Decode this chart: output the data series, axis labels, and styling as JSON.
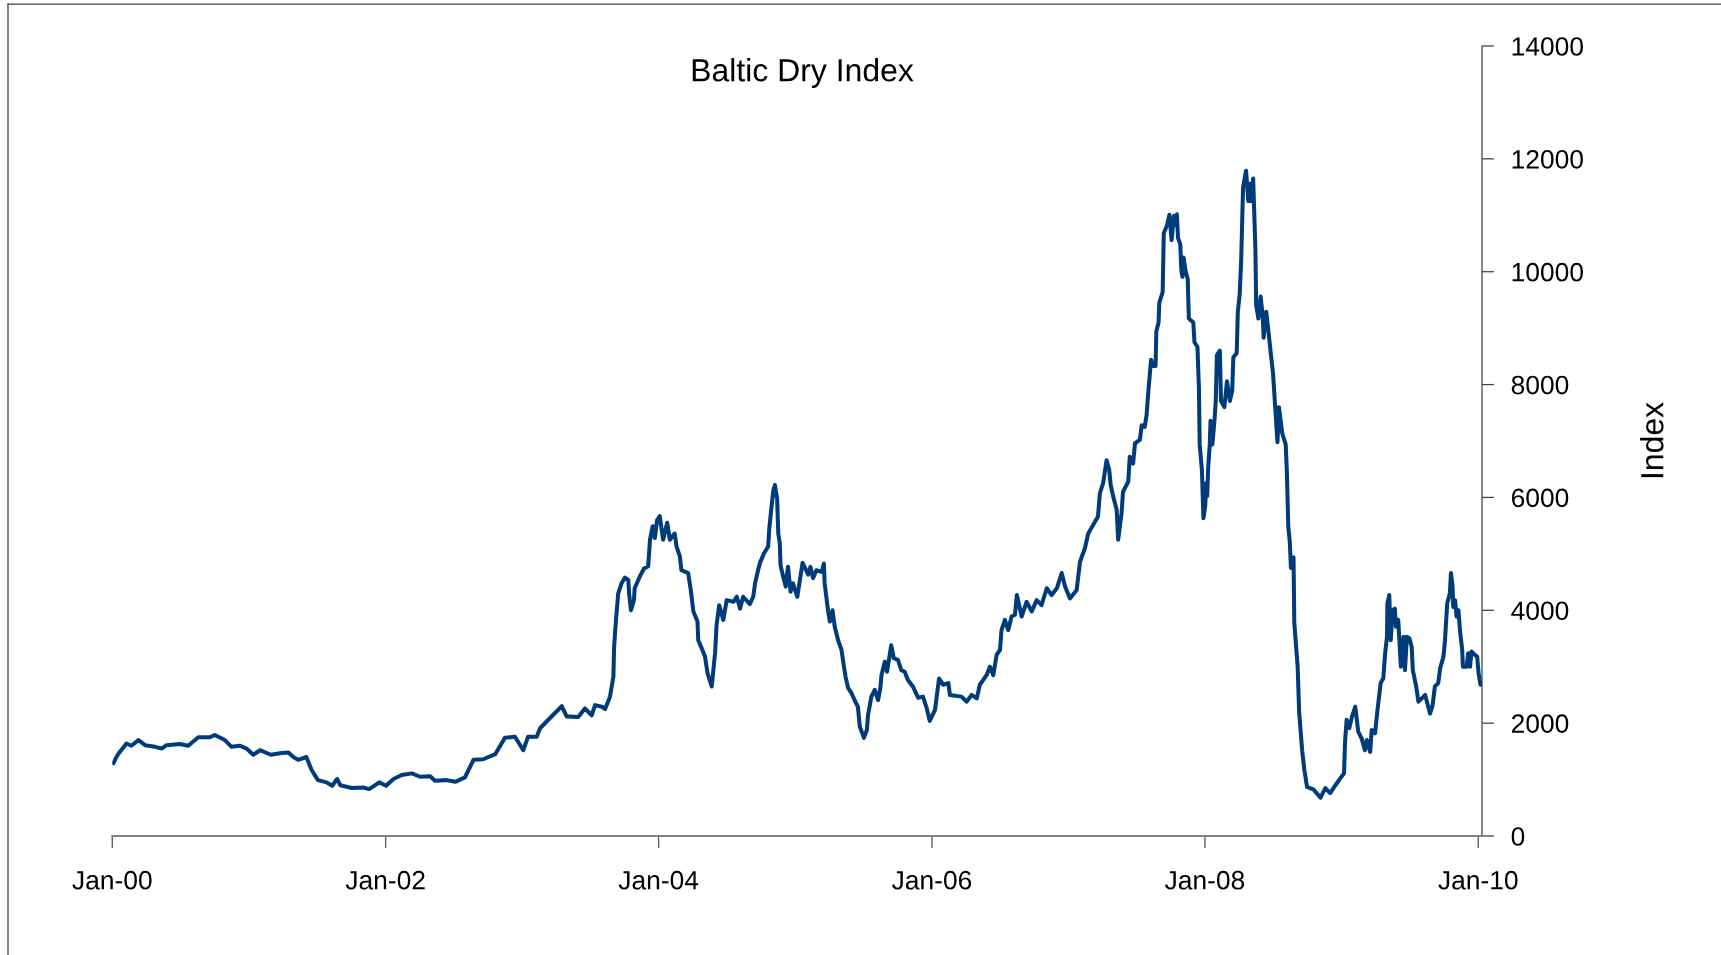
{
  "chart_data": {
    "type": "line",
    "title": "Baltic Dry Index",
    "ylabel": "Index",
    "x": [
      "2000-01-04",
      "2000-01-12",
      "2000-01-21",
      "2000-02-08",
      "2000-02-21",
      "2000-03-11",
      "2000-03-29",
      "2000-04-24",
      "2000-05-12",
      "2000-05-25",
      "2000-06-30",
      "2000-07-22",
      "2000-08-18",
      "2000-09-18",
      "2000-10-01",
      "2000-10-28",
      "2000-11-15",
      "2000-12-07",
      "2000-12-25",
      "2001-01-12",
      "2001-01-30",
      "2001-02-28",
      "2001-03-29",
      "2001-04-16",
      "2001-04-29",
      "2001-05-12",
      "2001-06-03",
      "2001-06-17",
      "2001-07-04",
      "2001-07-27",
      "2001-08-11",
      "2001-08-24",
      "2001-09-02",
      "2001-10-02",
      "2001-11-02",
      "2001-11-18",
      "2001-12-15",
      "2002-01-02",
      "2002-01-22",
      "2002-02-13",
      "2002-03-12",
      "2002-04-03",
      "2002-04-30",
      "2002-05-13",
      "2002-06-13",
      "2002-07-06",
      "2002-08-01",
      "2002-08-24",
      "2002-09-19",
      "2002-10-21",
      "2002-11-16",
      "2002-12-13",
      "2003-01-04",
      "2003-01-17",
      "2003-02-09",
      "2003-02-18",
      "2003-03-12",
      "2003-04-17",
      "2003-04-30",
      "2003-05-31",
      "2003-06-18",
      "2003-07-06",
      "2003-07-15",
      "2003-08-02",
      "2003-08-11",
      "2003-08-24",
      "2003-09-02",
      "2003-09-04",
      "2003-09-09",
      "2003-09-15",
      "2003-09-24",
      "2003-10-03",
      "2003-10-12",
      "2003-10-14",
      "2003-10-19",
      "2003-10-27",
      "2003-10-29",
      "2003-11-12",
      "2003-11-23",
      "2003-12-04",
      "2003-12-09",
      "2003-12-16",
      "2003-12-22",
      "2003-12-28",
      "2004-01-04",
      "2004-01-13",
      "2004-01-24",
      "2004-01-31",
      "2004-02-13",
      "2004-02-18",
      "2004-02-27",
      "2004-03-02",
      "2004-03-20",
      "2004-03-27",
      "2004-04-03",
      "2004-04-14",
      "2004-04-16",
      "2004-04-25",
      "2004-05-04",
      "2004-05-11",
      "2004-05-22",
      "2004-05-31",
      "2004-06-04",
      "2004-06-11",
      "2004-06-22",
      "2004-07-01",
      "2004-07-19",
      "2004-07-28",
      "2004-08-06",
      "2004-08-14",
      "2004-09-01",
      "2004-09-10",
      "2004-09-15",
      "2004-09-23",
      "2004-09-28",
      "2004-10-09",
      "2004-10-20",
      "2004-10-23",
      "2004-10-29",
      "2004-11-03",
      "2004-11-07",
      "2004-11-13",
      "2004-11-16",
      "2004-11-20",
      "2004-11-22",
      "2004-11-29",
      "2004-12-06",
      "2004-12-12",
      "2004-12-19",
      "2004-12-25",
      "2005-01-06",
      "2005-01-15",
      "2005-01-20",
      "2005-02-04",
      "2005-02-10",
      "2005-02-17",
      "2005-02-26",
      "2005-03-12",
      "2005-03-18",
      "2005-03-20",
      "2005-03-29",
      "2005-04-03",
      "2005-04-10",
      "2005-04-16",
      "2005-04-25",
      "2005-05-04",
      "2005-05-10",
      "2005-05-15",
      "2005-05-22",
      "2005-05-31",
      "2005-06-08",
      "2005-06-17",
      "2005-06-22",
      "2005-07-03",
      "2005-07-11",
      "2005-07-14",
      "2005-07-23",
      "2005-08-01",
      "2005-08-10",
      "2005-08-16",
      "2005-08-19",
      "2005-08-28",
      "2005-09-03",
      "2005-09-14",
      "2005-09-21",
      "2005-10-02",
      "2005-10-11",
      "2005-10-20",
      "2005-10-29",
      "2005-11-11",
      "2005-11-25",
      "2005-12-08",
      "2005-12-17",
      "2005-12-26",
      "2006-01-09",
      "2006-01-20",
      "2006-01-31",
      "2006-02-14",
      "2006-02-18",
      "2006-03-21",
      "2006-04-04",
      "2006-04-17",
      "2006-05-01",
      "2006-05-09",
      "2006-05-27",
      "2006-06-05",
      "2006-06-14",
      "2006-06-23",
      "2006-07-02",
      "2006-07-06",
      "2006-07-15",
      "2006-07-24",
      "2006-08-02",
      "2006-08-11",
      "2006-08-16",
      "2006-08-29",
      "2006-09-11",
      "2006-09-25",
      "2006-10-08",
      "2006-10-21",
      "2006-11-04",
      "2006-11-17",
      "2006-12-01",
      "2006-12-14",
      "2006-12-23",
      "2007-01-05",
      "2007-01-23",
      "2007-02-01",
      "2007-02-14",
      "2007-02-23",
      "2007-03-08",
      "2007-03-21",
      "2007-03-26",
      "2007-04-04",
      "2007-04-13",
      "2007-04-20",
      "2007-04-24",
      "2007-05-01",
      "2007-05-10",
      "2007-05-14",
      "2007-05-23",
      "2007-05-27",
      "2007-06-10",
      "2007-06-14",
      "2007-06-23",
      "2007-06-28",
      "2007-07-11",
      "2007-07-16",
      "2007-07-24",
      "2007-07-29",
      "2007-08-03",
      "2007-08-10",
      "2007-08-15",
      "2007-08-22",
      "2007-08-24",
      "2007-08-30",
      "2007-09-01",
      "2007-09-10",
      "2007-09-13",
      "2007-09-22",
      "2007-09-28",
      "2007-10-04",
      "2007-10-10",
      "2007-10-15",
      "2007-10-18",
      "2007-10-21",
      "2007-10-27",
      "2007-10-30",
      "2007-11-02",
      "2007-11-05",
      "2007-11-10",
      "2007-11-16",
      "2007-11-19",
      "2007-12-01",
      "2007-12-04",
      "2007-12-12",
      "2007-12-16",
      "2007-12-18",
      "2007-12-24",
      "2007-12-28",
      "2008-01-02",
      "2008-01-04",
      "2008-01-07",
      "2008-01-10",
      "2008-01-14",
      "2008-01-16",
      "2008-01-21",
      "2008-01-27",
      "2008-01-30",
      "2008-02-02",
      "2008-02-10",
      "2008-02-13",
      "2008-02-22",
      "2008-02-29",
      "2008-03-08",
      "2008-03-14",
      "2008-03-17",
      "2008-03-26",
      "2008-03-29",
      "2008-04-03",
      "2008-04-07",
      "2008-04-12",
      "2008-04-20",
      "2008-04-26",
      "2008-04-30",
      "2008-05-03",
      "2008-05-09",
      "2008-05-15",
      "2008-05-17",
      "2008-05-23",
      "2008-05-29",
      "2008-06-04",
      "2008-06-06",
      "2008-06-13",
      "2008-06-19",
      "2008-06-25",
      "2008-07-01",
      "2008-07-07",
      "2008-07-13",
      "2008-07-17",
      "2008-07-26",
      "2008-08-04",
      "2008-08-07",
      "2008-08-11",
      "2008-08-15",
      "2008-08-18",
      "2008-08-25",
      "2008-08-27",
      "2008-09-05",
      "2008-09-09",
      "2008-09-17",
      "2008-09-23",
      "2008-09-30",
      "2008-10-18",
      "2008-11-05",
      "2008-11-18",
      "2008-12-01",
      "2008-12-15",
      "2008-12-28",
      "2009-01-07",
      "2009-01-10",
      "2009-01-14",
      "2009-01-21",
      "2009-01-28",
      "2009-02-06",
      "2009-02-14",
      "2009-02-23",
      "2009-03-04",
      "2009-03-09",
      "2009-03-18",
      "2009-03-22",
      "2009-03-31",
      "2009-04-06",
      "2009-04-15",
      "2009-04-22",
      "2009-04-27",
      "2009-05-02",
      "2009-05-03",
      "2009-05-08",
      "2009-05-12",
      "2009-05-17",
      "2009-05-23",
      "2009-05-26",
      "2009-06-01",
      "2009-06-08",
      "2009-06-15",
      "2009-06-19",
      "2009-06-24",
      "2009-07-01",
      "2009-07-07",
      "2009-07-10",
      "2009-07-19",
      "2009-07-25",
      "2009-08-03",
      "2009-08-12",
      "2009-08-18",
      "2009-08-25",
      "2009-09-01",
      "2009-09-07",
      "2009-09-16",
      "2009-09-21",
      "2009-09-30",
      "2009-10-04",
      "2009-10-10",
      "2009-10-17",
      "2009-10-20",
      "2009-10-24",
      "2009-10-26",
      "2009-10-31",
      "2009-11-04",
      "2009-11-09",
      "2009-11-13",
      "2009-11-19",
      "2009-11-21",
      "2009-12-01",
      "2009-12-05",
      "2009-12-10",
      "2009-12-14",
      "2009-12-23",
      "2009-12-29",
      "2010-01-02",
      "2010-01-07"
    ],
    "series": [
      {
        "color": "#003b7b",
        "values": [
          1290,
          1400,
          1490,
          1640,
          1600,
          1700,
          1610,
          1580,
          1550,
          1610,
          1630,
          1600,
          1750,
          1750,
          1790,
          1700,
          1580,
          1600,
          1550,
          1440,
          1520,
          1440,
          1470,
          1480,
          1400,
          1350,
          1400,
          1170,
          990,
          950,
          890,
          1010,
          900,
          850,
          860,
          830,
          950,
          890,
          1010,
          1080,
          1110,
          1050,
          1060,
          980,
          990,
          960,
          1040,
          1350,
          1360,
          1450,
          1740,
          1760,
          1520,
          1760,
          1760,
          1910,
          2060,
          2300,
          2120,
          2110,
          2260,
          2140,
          2320,
          2290,
          2250,
          2470,
          2820,
          3350,
          3830,
          4300,
          4480,
          4580,
          4540,
          4300,
          4000,
          4180,
          4390,
          4600,
          4740,
          4780,
          5250,
          5490,
          5280,
          5600,
          5670,
          5250,
          5550,
          5250,
          5360,
          5130,
          4950,
          4710,
          4660,
          4360,
          3980,
          3800,
          3470,
          3330,
          3180,
          2880,
          2650,
          3240,
          3740,
          4090,
          3830,
          4180,
          4150,
          4240,
          4030,
          4240,
          4110,
          4240,
          4480,
          4710,
          4840,
          5010,
          5130,
          5450,
          5840,
          6130,
          6220,
          5980,
          5360,
          5190,
          4800,
          4600,
          4420,
          4770,
          4330,
          4480,
          4240,
          4630,
          4840,
          4630,
          4770,
          4570,
          4710,
          4680,
          4830,
          4480,
          4000,
          3800,
          4000,
          3710,
          3470,
          3300,
          3030,
          2820,
          2620,
          2530,
          2410,
          2290,
          1940,
          1740,
          1880,
          2140,
          2470,
          2590,
          2410,
          2620,
          2850,
          3090,
          2910,
          3380,
          3150,
          3120,
          2940,
          2910,
          2760,
          2650,
          2450,
          2470,
          2290,
          2040,
          2230,
          2790,
          2680,
          2710,
          2500,
          2470,
          2380,
          2500,
          2440,
          2680,
          2850,
          3000,
          2850,
          3210,
          3300,
          3650,
          3830,
          3650,
          3890,
          3920,
          4270,
          3890,
          4150,
          3980,
          4180,
          4090,
          4390,
          4270,
          4390,
          4660,
          4420,
          4210,
          4360,
          4860,
          5100,
          5360,
          5510,
          5660,
          6070,
          6260,
          6660,
          6490,
          6220,
          6010,
          5780,
          5250,
          5720,
          6100,
          6280,
          6720,
          6600,
          6960,
          7020,
          7280,
          7250,
          7460,
          7900,
          8440,
          8330,
          8330,
          8940,
          9100,
          9450,
          9640,
          10680,
          10830,
          11010,
          10560,
          10990,
          10830,
          11020,
          10600,
          10490,
          10020,
          9910,
          10250,
          10020,
          9870,
          9170,
          9100,
          8750,
          8670,
          7940,
          6940,
          6480,
          5630,
          5860,
          6250,
          6020,
          6560,
          6940,
          7360,
          6940,
          7400,
          7710,
          8520,
          8600,
          7710,
          7600,
          8060,
          7710,
          7900,
          8480,
          8560,
          9290,
          9600,
          10210,
          11490,
          11790,
          11250,
          11560,
          11250,
          11650,
          10410,
          9410,
          9170,
          9560,
          9170,
          8830,
          9290,
          8940,
          8560,
          8210,
          7600,
          6980,
          7600,
          7130,
          6940,
          6480,
          5480,
          5210,
          4750,
          4940,
          3780,
          3000,
          2200,
          1520,
          1170,
          870,
          820,
          680,
          850,
          760,
          900,
          1020,
          1110,
          1700,
          2060,
          1910,
          2110,
          2290,
          1850,
          1730,
          1520,
          1700,
          1490,
          1880,
          1820,
          2200,
          2710,
          2790,
          3240,
          3530,
          4120,
          4270,
          3470,
          4000,
          4030,
          3710,
          3830,
          3000,
          3530,
          2940,
          3530,
          3500,
          3350,
          2940,
          2650,
          2380,
          2440,
          2500,
          2350,
          2170,
          2320,
          2650,
          2710,
          2970,
          3180,
          3470,
          4120,
          4300,
          4660,
          4450,
          4060,
          4180,
          3890,
          4000,
          3650,
          3300,
          3000,
          3000,
          3240,
          3000,
          3270,
          3210,
          3180,
          2880,
          2680
        ]
      }
    ],
    "xlim": [
      "2000-01-01",
      "2010-01-11"
    ],
    "xticks": [
      {
        "value": "2000-01-01",
        "label": "Jan-00"
      },
      {
        "value": "2002-01-01",
        "label": "Jan-02"
      },
      {
        "value": "2004-01-01",
        "label": "Jan-04"
      },
      {
        "value": "2006-01-01",
        "label": "Jan-06"
      },
      {
        "value": "2008-01-01",
        "label": "Jan-08"
      },
      {
        "value": "2010-01-01",
        "label": "Jan-10"
      }
    ],
    "ylim": [
      0,
      14000
    ],
    "yticks": [
      0,
      2000,
      4000,
      6000,
      8000,
      10000,
      12000,
      14000
    ]
  }
}
